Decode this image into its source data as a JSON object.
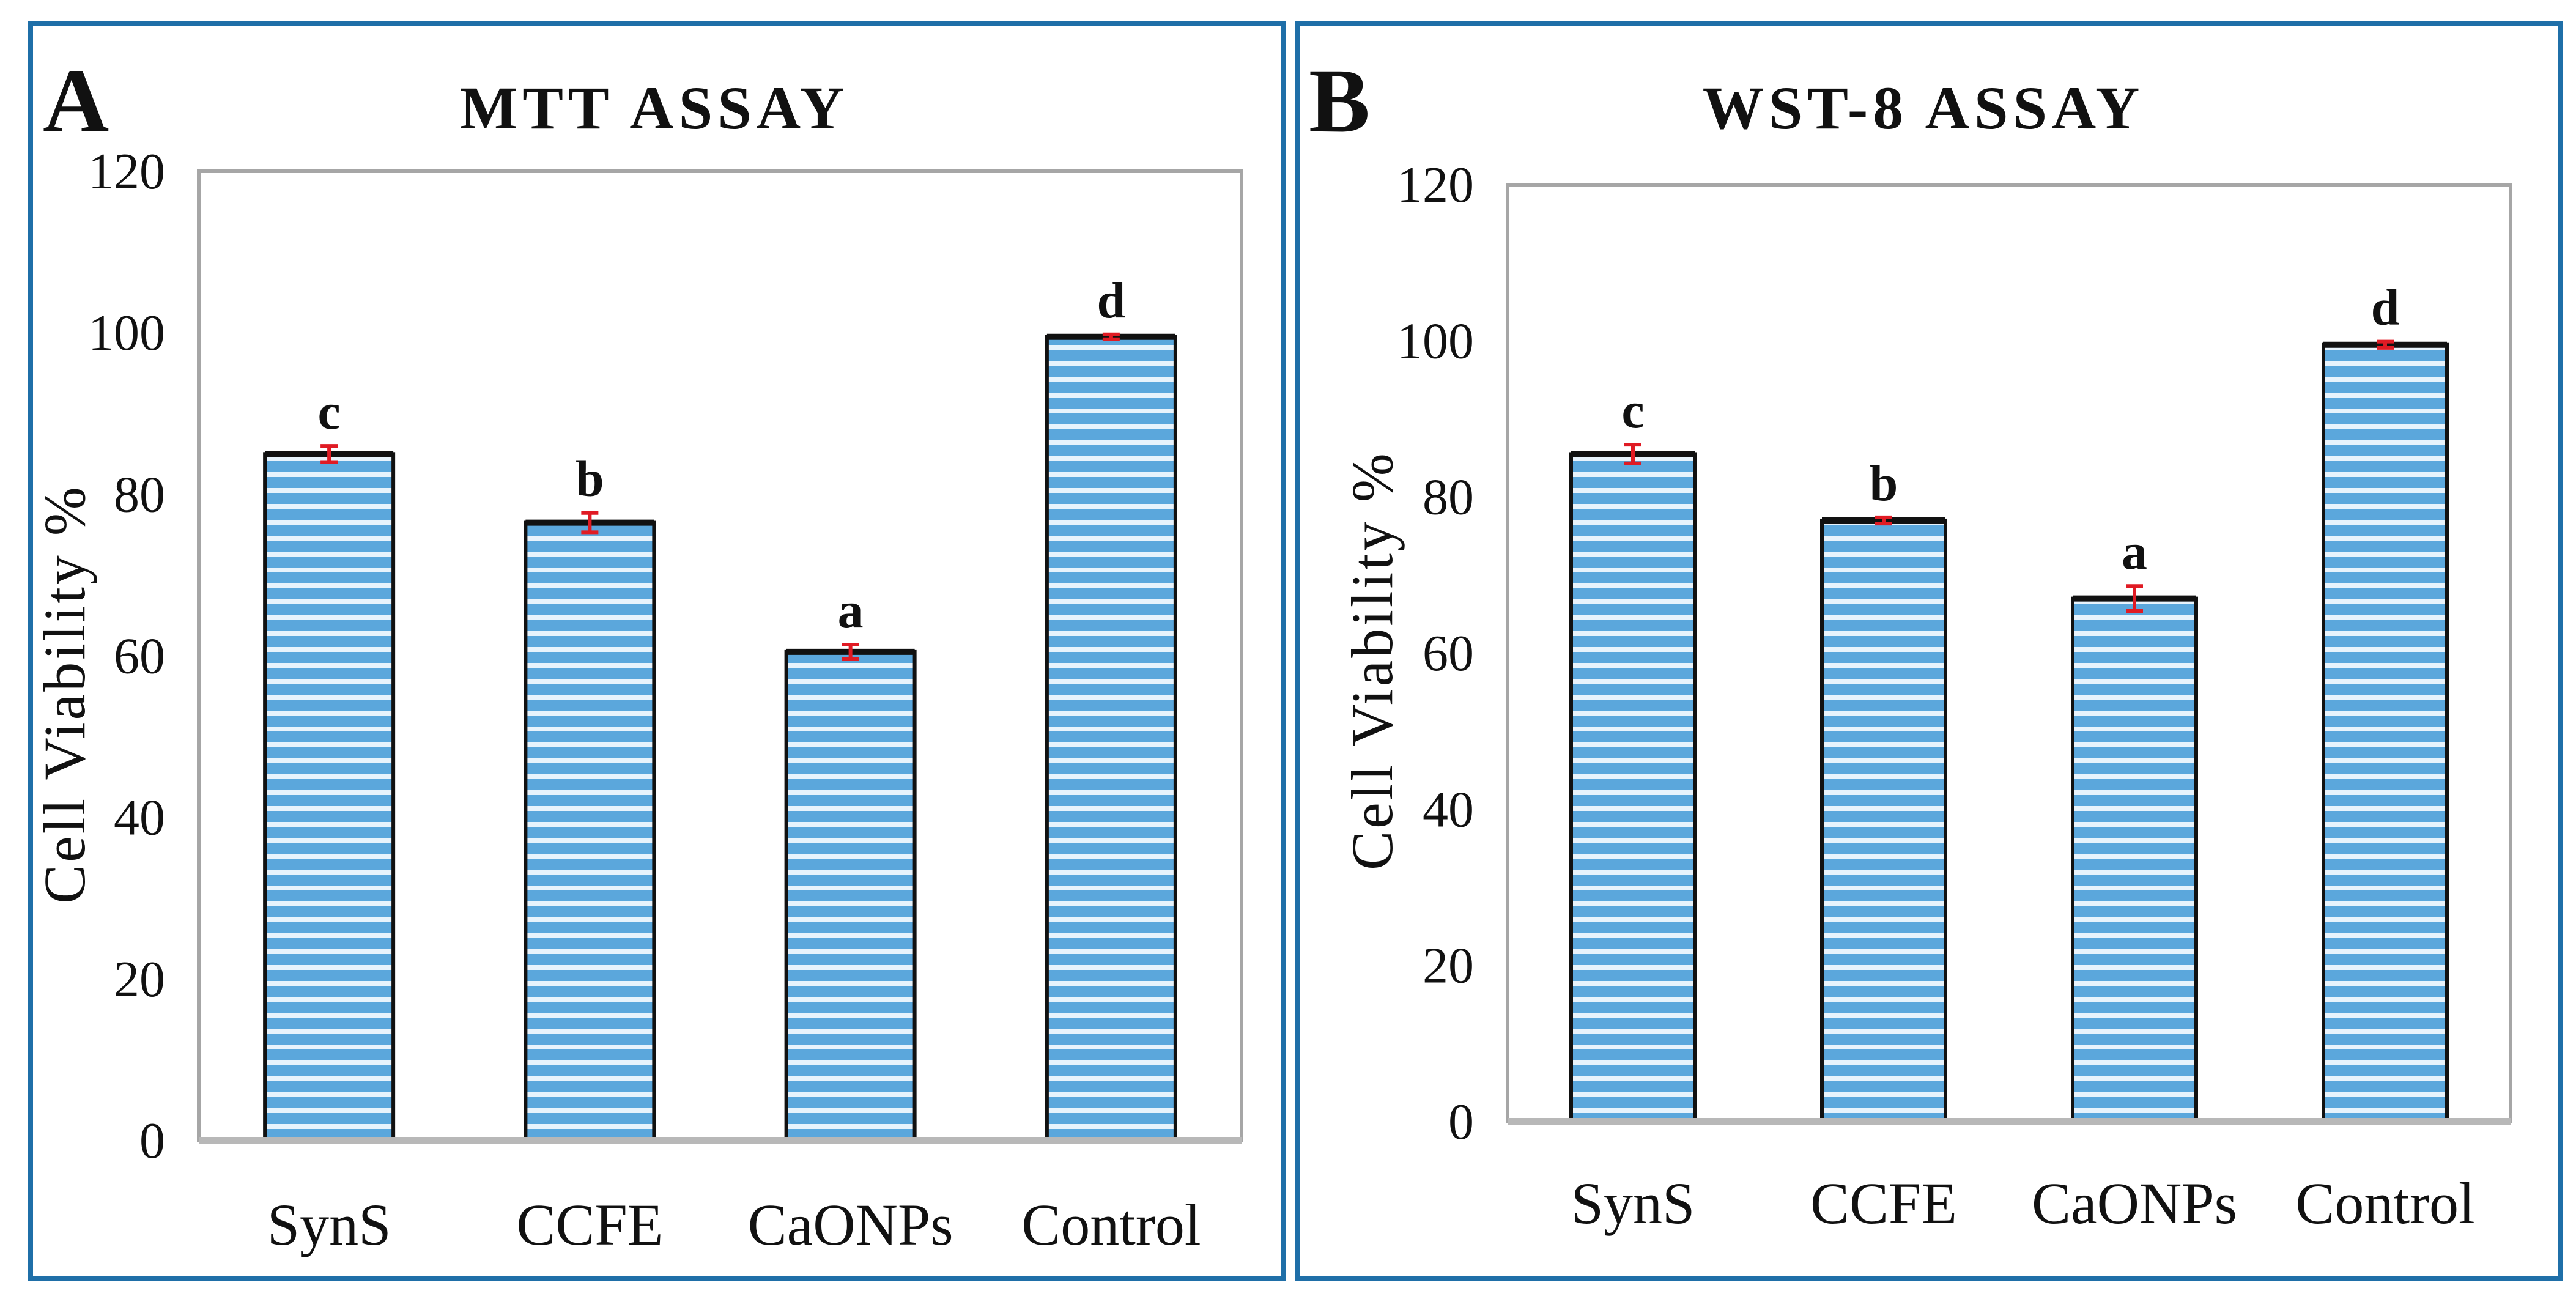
{
  "colors": {
    "panel_border": "#1f6fa8",
    "bar_fill": "#5ba7dc",
    "bar_stripe": "#e8f3fc",
    "bar_outline": "#111111",
    "error_bar": "#e01b24",
    "plot_border": "#a6a6a6",
    "axis_line": "#b8b8b8"
  },
  "chart_data": [
    {
      "panel": "A",
      "type": "bar",
      "title": "MTT ASSAY",
      "xlabel": "",
      "ylabel": "Cell Viability %",
      "ylim": [
        0,
        120
      ],
      "yticks": [
        0,
        20,
        40,
        60,
        80,
        100,
        120
      ],
      "categories": [
        "SynS",
        "CCFE",
        "CaONPs",
        "Control"
      ],
      "values": [
        85,
        76.5,
        60.5,
        99.5
      ],
      "errors": [
        1.0,
        1.2,
        0.9,
        0.3
      ],
      "significance": [
        "c",
        "b",
        "a",
        "d"
      ],
      "grid": false
    },
    {
      "panel": "B",
      "type": "bar",
      "title": "WST-8 ASSAY",
      "xlabel": "",
      "ylabel": "Cell Viability %",
      "ylim": [
        0,
        120
      ],
      "yticks": [
        0,
        20,
        40,
        60,
        80,
        100,
        120
      ],
      "categories": [
        "SynS",
        "CCFE",
        "CaONPs",
        "Control"
      ],
      "values": [
        85.5,
        77,
        67,
        99.5
      ],
      "errors": [
        1.2,
        0.4,
        1.6,
        0.4
      ],
      "significance": [
        "c",
        "b",
        "a",
        "d"
      ],
      "grid": false
    }
  ]
}
